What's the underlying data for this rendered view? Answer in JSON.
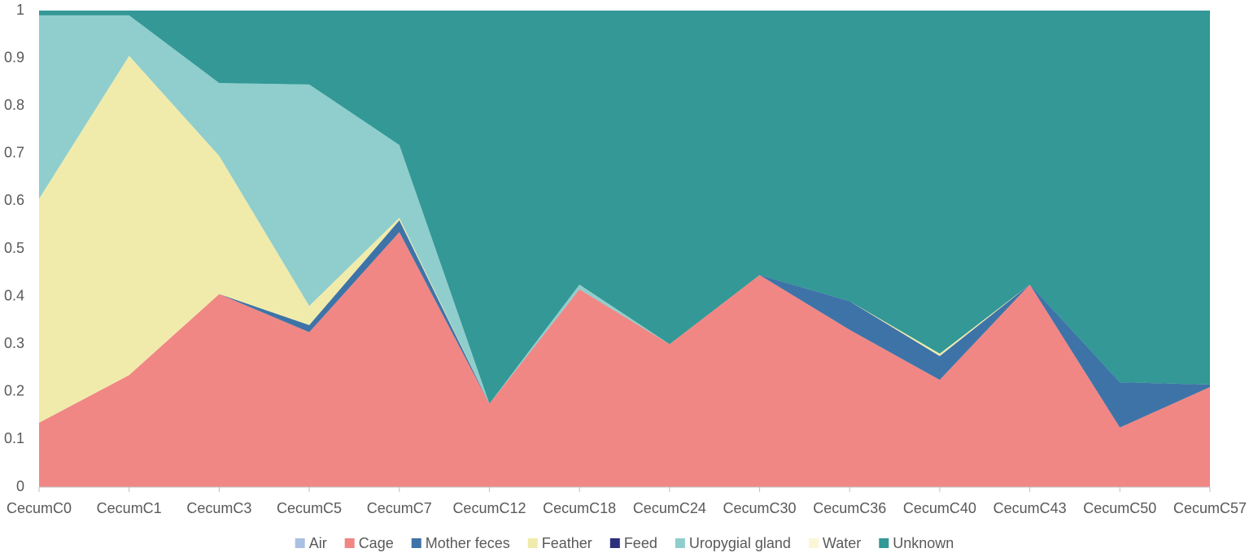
{
  "chart_data": {
    "type": "stacked-area",
    "categories": [
      "CecumC0",
      "CecumC1",
      "CecumC3",
      "CecumC5",
      "CecumC7",
      "CecumC12",
      "CecumC18",
      "CecumC24",
      "CecumC30",
      "CecumC36",
      "CecumC40",
      "CecumC43",
      "CecumC50",
      "CecumC57"
    ],
    "series": [
      {
        "name": "Air",
        "color": "#a9c0e0",
        "values": [
          0,
          0,
          0,
          0,
          0,
          0,
          0,
          0,
          0,
          0,
          0,
          0,
          0,
          0
        ]
      },
      {
        "name": "Cage",
        "color": "#f08784",
        "values": [
          0.135,
          0.235,
          0.405,
          0.325,
          0.535,
          0.175,
          0.415,
          0.3,
          0.445,
          0.33,
          0.225,
          0.425,
          0.125,
          0.21
        ]
      },
      {
        "name": "Mother feces",
        "color": "#3e73a8",
        "values": [
          0,
          0,
          0,
          0.015,
          0.025,
          0,
          0,
          0,
          0,
          0.06,
          0.05,
          0,
          0.095,
          0.005
        ]
      },
      {
        "name": "Feather",
        "color": "#f1ebab",
        "values": [
          0.47,
          0.67,
          0.29,
          0.04,
          0.005,
          0,
          0,
          0,
          0,
          0,
          0.005,
          0,
          0,
          0
        ]
      },
      {
        "name": "Feed",
        "color": "#2b2f7c",
        "values": [
          0,
          0,
          0,
          0,
          0,
          0,
          0,
          0,
          0,
          0,
          0,
          0,
          0,
          0
        ]
      },
      {
        "name": "Uropygial gland",
        "color": "#8fcecd",
        "values": [
          0.385,
          0.085,
          0.153,
          0.465,
          0.153,
          0,
          0.01,
          0,
          0,
          0,
          0,
          0,
          0,
          0
        ]
      },
      {
        "name": "Water",
        "color": "#fbf6d6",
        "values": [
          0,
          0,
          0,
          0,
          0,
          0,
          0,
          0,
          0,
          0,
          0,
          0,
          0,
          0
        ]
      },
      {
        "name": "Unknown",
        "color": "#339896",
        "values": [
          0.01,
          0.01,
          0.152,
          0.155,
          0.282,
          0.825,
          0.575,
          0.7,
          0.555,
          0.61,
          0.72,
          0.575,
          0.78,
          0.785
        ]
      }
    ],
    "ylim": [
      0,
      1
    ],
    "yticks": [
      0,
      0.1,
      0.2,
      0.3,
      0.4,
      0.5,
      0.6,
      0.7,
      0.8,
      0.9,
      1
    ],
    "grid": false,
    "legend": "bottom"
  }
}
